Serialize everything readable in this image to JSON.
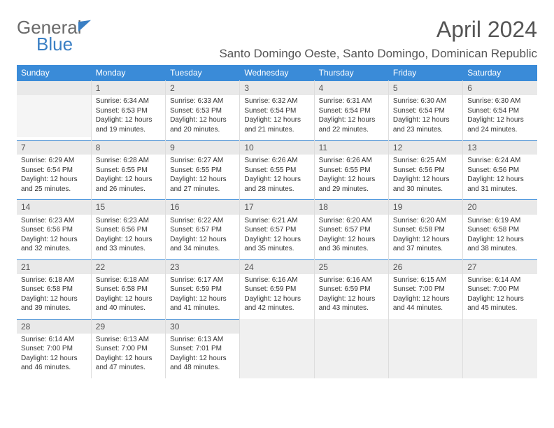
{
  "logo": {
    "line1": "General",
    "line2": "Blue"
  },
  "title": "April 2024",
  "location": "Santo Domingo Oeste, Santo Domingo, Dominican Republic",
  "weekdays": [
    "Sunday",
    "Monday",
    "Tuesday",
    "Wednesday",
    "Thursday",
    "Friday",
    "Saturday"
  ],
  "colors": {
    "header_bg": "#3a8bd8",
    "daynum_bg": "#e9e9e9",
    "accent": "#3a7fc4"
  },
  "weeks": [
    [
      {
        "day": "",
        "empty": true
      },
      {
        "day": "1",
        "sunrise": "Sunrise: 6:34 AM",
        "sunset": "Sunset: 6:53 PM",
        "daylight1": "Daylight: 12 hours",
        "daylight2": "and 19 minutes."
      },
      {
        "day": "2",
        "sunrise": "Sunrise: 6:33 AM",
        "sunset": "Sunset: 6:53 PM",
        "daylight1": "Daylight: 12 hours",
        "daylight2": "and 20 minutes."
      },
      {
        "day": "3",
        "sunrise": "Sunrise: 6:32 AM",
        "sunset": "Sunset: 6:54 PM",
        "daylight1": "Daylight: 12 hours",
        "daylight2": "and 21 minutes."
      },
      {
        "day": "4",
        "sunrise": "Sunrise: 6:31 AM",
        "sunset": "Sunset: 6:54 PM",
        "daylight1": "Daylight: 12 hours",
        "daylight2": "and 22 minutes."
      },
      {
        "day": "5",
        "sunrise": "Sunrise: 6:30 AM",
        "sunset": "Sunset: 6:54 PM",
        "daylight1": "Daylight: 12 hours",
        "daylight2": "and 23 minutes."
      },
      {
        "day": "6",
        "sunrise": "Sunrise: 6:30 AM",
        "sunset": "Sunset: 6:54 PM",
        "daylight1": "Daylight: 12 hours",
        "daylight2": "and 24 minutes."
      }
    ],
    [
      {
        "day": "7",
        "sunrise": "Sunrise: 6:29 AM",
        "sunset": "Sunset: 6:54 PM",
        "daylight1": "Daylight: 12 hours",
        "daylight2": "and 25 minutes."
      },
      {
        "day": "8",
        "sunrise": "Sunrise: 6:28 AM",
        "sunset": "Sunset: 6:55 PM",
        "daylight1": "Daylight: 12 hours",
        "daylight2": "and 26 minutes."
      },
      {
        "day": "9",
        "sunrise": "Sunrise: 6:27 AM",
        "sunset": "Sunset: 6:55 PM",
        "daylight1": "Daylight: 12 hours",
        "daylight2": "and 27 minutes."
      },
      {
        "day": "10",
        "sunrise": "Sunrise: 6:26 AM",
        "sunset": "Sunset: 6:55 PM",
        "daylight1": "Daylight: 12 hours",
        "daylight2": "and 28 minutes."
      },
      {
        "day": "11",
        "sunrise": "Sunrise: 6:26 AM",
        "sunset": "Sunset: 6:55 PM",
        "daylight1": "Daylight: 12 hours",
        "daylight2": "and 29 minutes."
      },
      {
        "day": "12",
        "sunrise": "Sunrise: 6:25 AM",
        "sunset": "Sunset: 6:56 PM",
        "daylight1": "Daylight: 12 hours",
        "daylight2": "and 30 minutes."
      },
      {
        "day": "13",
        "sunrise": "Sunrise: 6:24 AM",
        "sunset": "Sunset: 6:56 PM",
        "daylight1": "Daylight: 12 hours",
        "daylight2": "and 31 minutes."
      }
    ],
    [
      {
        "day": "14",
        "sunrise": "Sunrise: 6:23 AM",
        "sunset": "Sunset: 6:56 PM",
        "daylight1": "Daylight: 12 hours",
        "daylight2": "and 32 minutes."
      },
      {
        "day": "15",
        "sunrise": "Sunrise: 6:23 AM",
        "sunset": "Sunset: 6:56 PM",
        "daylight1": "Daylight: 12 hours",
        "daylight2": "and 33 minutes."
      },
      {
        "day": "16",
        "sunrise": "Sunrise: 6:22 AM",
        "sunset": "Sunset: 6:57 PM",
        "daylight1": "Daylight: 12 hours",
        "daylight2": "and 34 minutes."
      },
      {
        "day": "17",
        "sunrise": "Sunrise: 6:21 AM",
        "sunset": "Sunset: 6:57 PM",
        "daylight1": "Daylight: 12 hours",
        "daylight2": "and 35 minutes."
      },
      {
        "day": "18",
        "sunrise": "Sunrise: 6:20 AM",
        "sunset": "Sunset: 6:57 PM",
        "daylight1": "Daylight: 12 hours",
        "daylight2": "and 36 minutes."
      },
      {
        "day": "19",
        "sunrise": "Sunrise: 6:20 AM",
        "sunset": "Sunset: 6:58 PM",
        "daylight1": "Daylight: 12 hours",
        "daylight2": "and 37 minutes."
      },
      {
        "day": "20",
        "sunrise": "Sunrise: 6:19 AM",
        "sunset": "Sunset: 6:58 PM",
        "daylight1": "Daylight: 12 hours",
        "daylight2": "and 38 minutes."
      }
    ],
    [
      {
        "day": "21",
        "sunrise": "Sunrise: 6:18 AM",
        "sunset": "Sunset: 6:58 PM",
        "daylight1": "Daylight: 12 hours",
        "daylight2": "and 39 minutes."
      },
      {
        "day": "22",
        "sunrise": "Sunrise: 6:18 AM",
        "sunset": "Sunset: 6:58 PM",
        "daylight1": "Daylight: 12 hours",
        "daylight2": "and 40 minutes."
      },
      {
        "day": "23",
        "sunrise": "Sunrise: 6:17 AM",
        "sunset": "Sunset: 6:59 PM",
        "daylight1": "Daylight: 12 hours",
        "daylight2": "and 41 minutes."
      },
      {
        "day": "24",
        "sunrise": "Sunrise: 6:16 AM",
        "sunset": "Sunset: 6:59 PM",
        "daylight1": "Daylight: 12 hours",
        "daylight2": "and 42 minutes."
      },
      {
        "day": "25",
        "sunrise": "Sunrise: 6:16 AM",
        "sunset": "Sunset: 6:59 PM",
        "daylight1": "Daylight: 12 hours",
        "daylight2": "and 43 minutes."
      },
      {
        "day": "26",
        "sunrise": "Sunrise: 6:15 AM",
        "sunset": "Sunset: 7:00 PM",
        "daylight1": "Daylight: 12 hours",
        "daylight2": "and 44 minutes."
      },
      {
        "day": "27",
        "sunrise": "Sunrise: 6:14 AM",
        "sunset": "Sunset: 7:00 PM",
        "daylight1": "Daylight: 12 hours",
        "daylight2": "and 45 minutes."
      }
    ],
    [
      {
        "day": "28",
        "sunrise": "Sunrise: 6:14 AM",
        "sunset": "Sunset: 7:00 PM",
        "daylight1": "Daylight: 12 hours",
        "daylight2": "and 46 minutes."
      },
      {
        "day": "29",
        "sunrise": "Sunrise: 6:13 AM",
        "sunset": "Sunset: 7:00 PM",
        "daylight1": "Daylight: 12 hours",
        "daylight2": "and 47 minutes."
      },
      {
        "day": "30",
        "sunrise": "Sunrise: 6:13 AM",
        "sunset": "Sunset: 7:01 PM",
        "daylight1": "Daylight: 12 hours",
        "daylight2": "and 48 minutes."
      },
      {
        "day": "",
        "empty": true,
        "trailing": true
      },
      {
        "day": "",
        "empty": true,
        "trailing": true
      },
      {
        "day": "",
        "empty": true,
        "trailing": true
      },
      {
        "day": "",
        "empty": true,
        "trailing": true
      }
    ]
  ]
}
